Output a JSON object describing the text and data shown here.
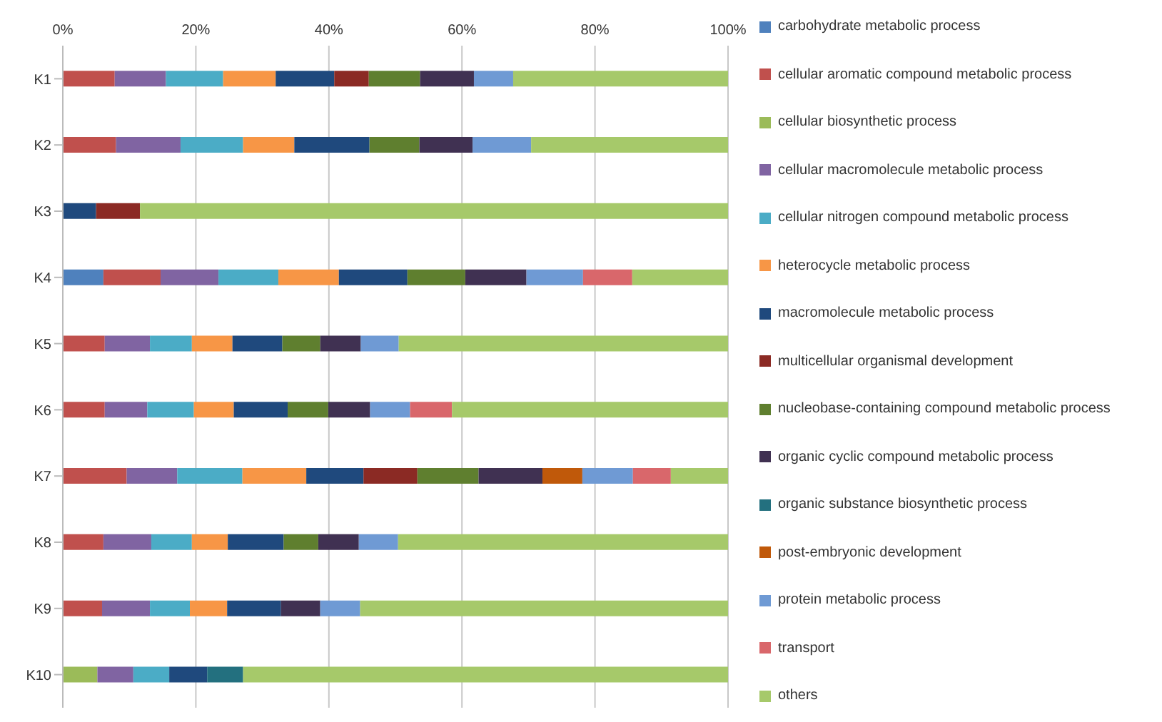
{
  "chart_data": {
    "type": "bar",
    "orientation": "horizontal",
    "stacked": true,
    "categories": [
      "K1",
      "K2",
      "K3",
      "K4",
      "K5",
      "K6",
      "K7",
      "K8",
      "K9",
      "K10"
    ],
    "xlim": [
      0,
      100
    ],
    "xticks": [
      {
        "value": 0,
        "label": "0%"
      },
      {
        "value": 20,
        "label": "20%"
      },
      {
        "value": 40,
        "label": "40%"
      },
      {
        "value": 60,
        "label": "60%"
      },
      {
        "value": 80,
        "label": "80%"
      },
      {
        "value": 100,
        "label": "100%"
      }
    ],
    "grid": "x",
    "legend": "right",
    "series": [
      {
        "name": "carbohydrate metabolic process",
        "color": "#4f81bd",
        "values": [
          null,
          null,
          null,
          6.1,
          null,
          null,
          null,
          null,
          null,
          null
        ]
      },
      {
        "name": "cellular aromatic compound metabolic process",
        "color": "#c0504d",
        "values": [
          7.8,
          8.0,
          null,
          8.6,
          6.3,
          6.3,
          9.6,
          6.1,
          5.9,
          null
        ]
      },
      {
        "name": "cellular biosynthetic process",
        "color": "#9bbb59",
        "values": [
          null,
          null,
          null,
          null,
          null,
          null,
          null,
          null,
          null,
          5.2
        ]
      },
      {
        "name": "cellular macromolecule metabolic process",
        "color": "#8064a2",
        "values": [
          7.7,
          9.7,
          null,
          8.7,
          6.8,
          6.4,
          7.6,
          7.2,
          7.2,
          5.4
        ]
      },
      {
        "name": "cellular nitrogen compound metabolic process",
        "color": "#4bacc6",
        "values": [
          8.6,
          9.4,
          null,
          9.0,
          6.3,
          7.0,
          9.8,
          6.1,
          6.0,
          5.4
        ]
      },
      {
        "name": "heterocycle metabolic process",
        "color": "#f79646",
        "values": [
          7.9,
          7.7,
          null,
          9.1,
          6.1,
          6.0,
          9.6,
          5.4,
          5.6,
          null
        ]
      },
      {
        "name": "macromolecule metabolic process",
        "color": "#1f497d",
        "values": [
          8.8,
          11.3,
          5.0,
          10.3,
          7.5,
          8.1,
          8.6,
          8.4,
          8.1,
          5.7
        ]
      },
      {
        "name": "multicellular organismal development",
        "color": "#8b2a24",
        "values": [
          5.2,
          null,
          6.6,
          null,
          null,
          null,
          8.1,
          null,
          null,
          null
        ]
      },
      {
        "name": "nucleobase-containing compound metabolic process",
        "color": "#5f7f2f",
        "values": [
          7.7,
          7.5,
          null,
          8.7,
          5.7,
          6.1,
          9.2,
          5.2,
          null,
          null
        ]
      },
      {
        "name": "organic cyclic compound metabolic process",
        "color": "#403152",
        "values": [
          8.1,
          8.0,
          null,
          9.2,
          6.1,
          6.3,
          9.6,
          6.1,
          5.9,
          null
        ]
      },
      {
        "name": "organic substance biosynthetic process",
        "color": "#23707f",
        "values": [
          null,
          null,
          null,
          null,
          null,
          null,
          null,
          null,
          null,
          5.4
        ]
      },
      {
        "name": "post-embryonic development",
        "color": "#c0590a",
        "values": [
          null,
          null,
          null,
          null,
          null,
          null,
          6.0,
          null,
          null,
          null
        ]
      },
      {
        "name": "protein metabolic process",
        "color": "#6f9ad4",
        "values": [
          5.9,
          8.8,
          null,
          8.5,
          5.7,
          6.0,
          7.6,
          5.9,
          6.0,
          null
        ]
      },
      {
        "name": "transport",
        "color": "#d9676b",
        "values": [
          null,
          null,
          null,
          7.4,
          null,
          6.3,
          5.7,
          null,
          null,
          null
        ]
      },
      {
        "name": "others",
        "color": "#a6c96a",
        "values": [
          32.3,
          29.6,
          88.4,
          14.4,
          49.5,
          41.5,
          8.6,
          49.6,
          55.3,
          72.9
        ]
      }
    ]
  }
}
